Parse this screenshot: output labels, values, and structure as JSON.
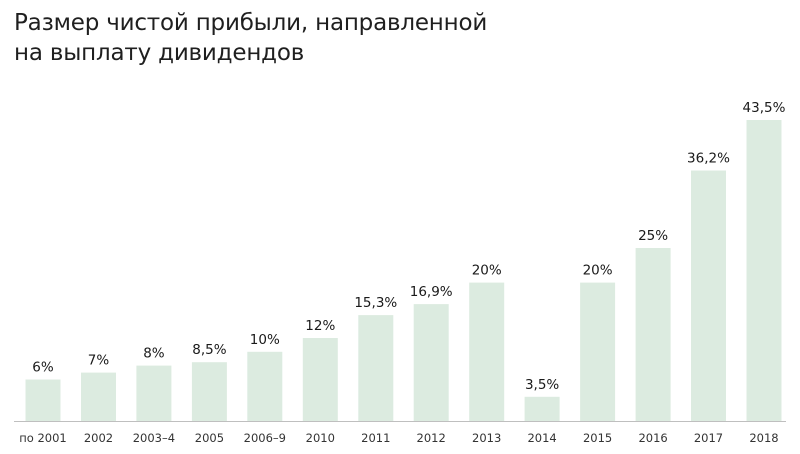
{
  "chart_data": {
    "type": "bar",
    "title_lines": [
      "Размер чистой прибыли, направленной",
      "на выплату дивидендов"
    ],
    "categories": [
      "по 2001",
      "2002",
      "2003–4",
      "2005",
      "2006–9",
      "2010",
      "2011",
      "2012",
      "2013",
      "2014",
      "2015",
      "2016",
      "2017",
      "2018"
    ],
    "values": [
      6,
      7,
      8,
      8.5,
      10,
      12,
      15.3,
      16.9,
      20,
      3.5,
      20,
      25,
      36.2,
      43.5
    ],
    "value_labels": [
      "6%",
      "7%",
      "8%",
      "8,5%",
      "10%",
      "12%",
      "15,3%",
      "16,9%",
      "20%",
      "3,5%",
      "20%",
      "25%",
      "36,2%",
      "43,5%"
    ],
    "unit": "%",
    "ylim": [
      0,
      43.5
    ],
    "grid": false,
    "bar_color": "#dcebe0"
  }
}
